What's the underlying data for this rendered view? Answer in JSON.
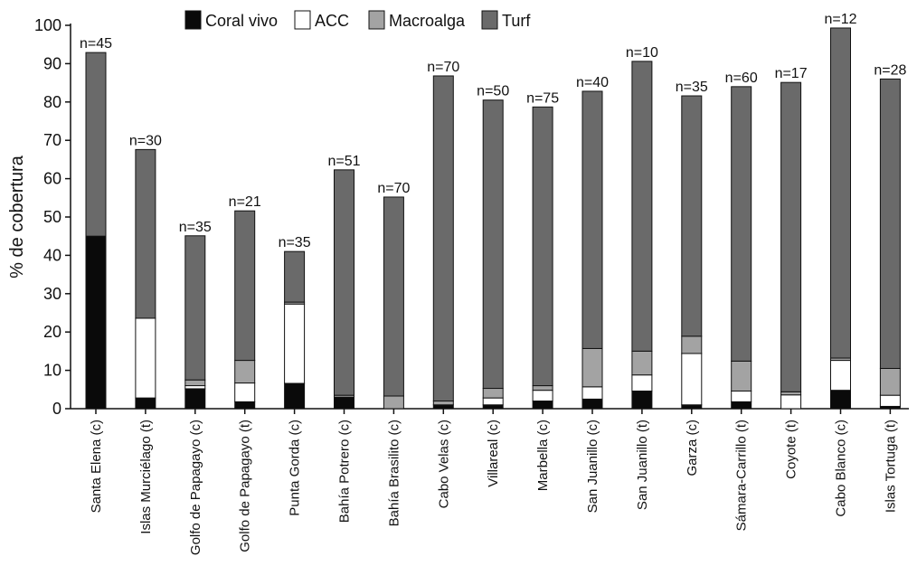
{
  "chart_data": {
    "type": "bar",
    "stacked": true,
    "ylabel": "% de cobertura",
    "xlabel": "",
    "ylim": [
      0,
      100
    ],
    "yticks": [
      0,
      10,
      20,
      30,
      40,
      50,
      60,
      70,
      80,
      90,
      100
    ],
    "grid": false,
    "legend_position": "top",
    "categories": [
      "Santa Elena (c)",
      "Islas Murciélago (t)",
      "Golfo de Papagayo (c)",
      "Golfo de Papagayo (t)",
      "Punta Gorda (c)",
      "Bahía Potrero (c)",
      "Bahía Brasilito (c)",
      "Cabo Velas (c)",
      "Villareal (c)",
      "Marbella (c)",
      "San Juanillo (c)",
      "San Juanillo (t)",
      "Garza (c)",
      "Sámara-Carrillo (t)",
      "Coyote (t)",
      "Cabo Blanco (c)",
      "Islas Tortuga (t)"
    ],
    "n_labels": [
      "n=45",
      "n=30",
      "n=35",
      "n=21",
      "n=35",
      "n=51",
      "n=70",
      "n=70",
      "n=50",
      "n=75",
      "n=40",
      "n=10",
      "n=35",
      "n=60",
      "n=17",
      "n=12",
      "n=28"
    ],
    "series": [
      {
        "name": "Coral vivo",
        "color": "#0a0a0a",
        "values": [
          45,
          2.8,
          5.2,
          1.8,
          6.6,
          3.0,
          0,
          1.0,
          1.0,
          2.0,
          2.5,
          4.6,
          1.0,
          1.8,
          0,
          4.8,
          0.6
        ]
      },
      {
        "name": "ACC",
        "color": "#ffffff",
        "values": [
          0,
          20.8,
          0.8,
          4.9,
          20.7,
          0,
          0,
          0,
          1.8,
          2.8,
          3.2,
          4.2,
          13.4,
          2.8,
          3.6,
          7.8,
          2.9
        ]
      },
      {
        "name": "Macroalga",
        "color": "#a3a3a3",
        "values": [
          0,
          0,
          1.5,
          5.9,
          0.5,
          0.5,
          3.3,
          1.0,
          2.5,
          1.2,
          10.0,
          6.2,
          4.5,
          7.8,
          0.8,
          0.6,
          7.0
        ]
      },
      {
        "name": "Turf",
        "color": "#6a6a6a",
        "values": [
          47.9,
          44.0,
          37.6,
          39.0,
          13.2,
          58.8,
          51.9,
          84.8,
          75.2,
          72.7,
          67.1,
          75.6,
          62.7,
          71.6,
          80.7,
          86.1,
          75.5
        ]
      }
    ]
  }
}
